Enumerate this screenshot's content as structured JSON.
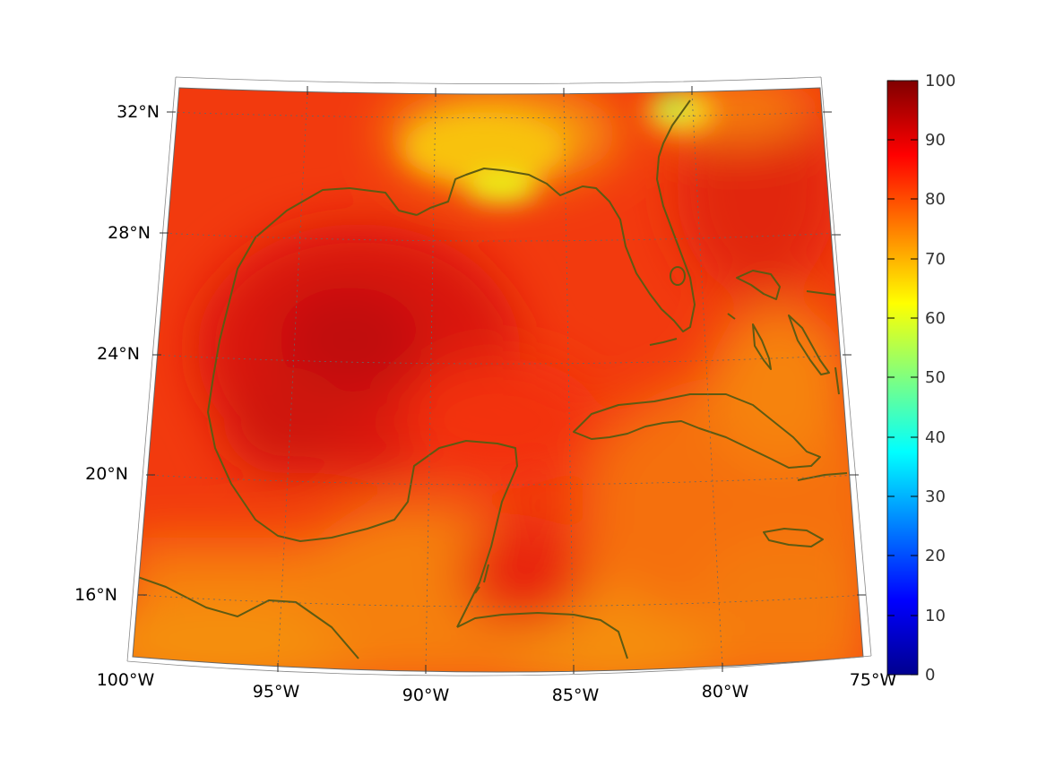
{
  "map": {
    "latitude_labels": [
      "32°N",
      "28°N",
      "24°N",
      "20°N",
      "16°N"
    ],
    "longitude_labels": [
      "100°W",
      "95°W",
      "90°W",
      "85°W",
      "80°W",
      "75°W"
    ],
    "coastline_color": "#5e5a12",
    "gridline_color": "#666666"
  },
  "colorbar": {
    "min": 0,
    "max": 100,
    "tick_labels": [
      "100",
      "90",
      "80",
      "70",
      "60",
      "50",
      "40",
      "30",
      "20",
      "10",
      "0"
    ],
    "colormap": "jet"
  },
  "field": {
    "dominant_range": [
      75,
      95
    ],
    "peak_region": "central Gulf of Mexico (~92°W, 25°N)",
    "lowest_region": "Georgia coast near 82°W, 31.5°N (~50–60)"
  }
}
